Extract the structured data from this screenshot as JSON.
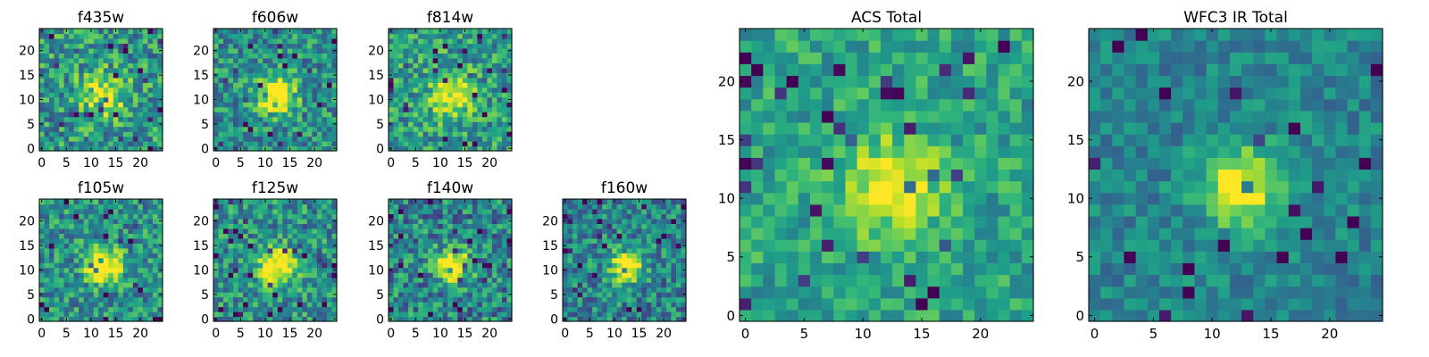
{
  "chart_data": [
    {
      "type": "heatmap",
      "title": "f435w",
      "xticks": [
        0,
        5,
        10,
        15,
        20
      ],
      "yticks": [
        0,
        5,
        10,
        15,
        20
      ],
      "xlim": [
        0,
        24
      ],
      "ylim": [
        0,
        24
      ],
      "grid_size": 25,
      "colormap": "viridis",
      "seed": 11,
      "source_sigma": 3.5,
      "source_amp": 0.45,
      "noise": 0.55,
      "base": 0.52
    },
    {
      "type": "heatmap",
      "title": "f606w",
      "xticks": [
        0,
        5,
        10,
        15,
        20
      ],
      "yticks": [
        0,
        5,
        10,
        15,
        20
      ],
      "xlim": [
        0,
        24
      ],
      "ylim": [
        0,
        24
      ],
      "grid_size": 25,
      "colormap": "viridis",
      "seed": 23,
      "source_sigma": 2.6,
      "source_amp": 0.7,
      "noise": 0.5,
      "base": 0.5
    },
    {
      "type": "heatmap",
      "title": "f814w",
      "xticks": [
        0,
        5,
        10,
        15,
        20
      ],
      "yticks": [
        0,
        5,
        10,
        15,
        20
      ],
      "xlim": [
        0,
        24
      ],
      "ylim": [
        0,
        24
      ],
      "grid_size": 25,
      "colormap": "viridis",
      "seed": 37,
      "source_sigma": 3,
      "source_amp": 0.5,
      "noise": 0.5,
      "base": 0.55
    },
    {
      "type": "heatmap",
      "title": "f105w",
      "xticks": [
        0,
        5,
        10,
        15,
        20
      ],
      "yticks": [
        0,
        5,
        10,
        15,
        20
      ],
      "xlim": [
        0,
        24
      ],
      "ylim": [
        0,
        24
      ],
      "grid_size": 25,
      "colormap": "viridis",
      "seed": 41,
      "source_sigma": 2.4,
      "source_amp": 0.75,
      "noise": 0.5,
      "base": 0.5
    },
    {
      "type": "heatmap",
      "title": "f125w",
      "xticks": [
        0,
        5,
        10,
        15,
        20
      ],
      "yticks": [
        0,
        5,
        10,
        15,
        20
      ],
      "xlim": [
        0,
        24
      ],
      "ylim": [
        0,
        24
      ],
      "grid_size": 25,
      "colormap": "viridis",
      "seed": 53,
      "source_sigma": 2.6,
      "source_amp": 0.7,
      "noise": 0.5,
      "base": 0.5
    },
    {
      "type": "heatmap",
      "title": "f140w",
      "xticks": [
        0,
        5,
        10,
        15,
        20
      ],
      "yticks": [
        0,
        5,
        10,
        15,
        20
      ],
      "xlim": [
        0,
        24
      ],
      "ylim": [
        0,
        24
      ],
      "grid_size": 25,
      "colormap": "viridis",
      "seed": 67,
      "source_sigma": 2.4,
      "source_amp": 0.7,
      "noise": 0.55,
      "base": 0.45
    },
    {
      "type": "heatmap",
      "title": "f160w",
      "xticks": [
        0,
        5,
        10,
        15,
        20
      ],
      "yticks": [
        0,
        5,
        10,
        15,
        20
      ],
      "xlim": [
        0,
        24
      ],
      "ylim": [
        0,
        24
      ],
      "grid_size": 25,
      "colormap": "viridis",
      "seed": 79,
      "source_sigma": 2.2,
      "source_amp": 0.75,
      "noise": 0.5,
      "base": 0.45
    },
    {
      "type": "heatmap",
      "title": "ACS Total",
      "xticks": [
        0,
        5,
        10,
        15,
        20
      ],
      "yticks": [
        0,
        5,
        10,
        15,
        20
      ],
      "xlim": [
        0,
        24
      ],
      "ylim": [
        0,
        24
      ],
      "grid_size": 25,
      "colormap": "viridis",
      "seed": 83,
      "source_sigma": 2.8,
      "source_amp": 0.45,
      "noise": 0.35,
      "base": 0.58
    },
    {
      "type": "heatmap",
      "title": "WFC3 IR Total",
      "xticks": [
        0,
        5,
        10,
        15,
        20
      ],
      "yticks": [
        0,
        5,
        10,
        15,
        20
      ],
      "xlim": [
        0,
        24
      ],
      "ylim": [
        0,
        24
      ],
      "grid_size": 25,
      "colormap": "viridis",
      "seed": 97,
      "source_sigma": 2.4,
      "source_amp": 0.6,
      "noise": 0.3,
      "base": 0.45
    }
  ]
}
